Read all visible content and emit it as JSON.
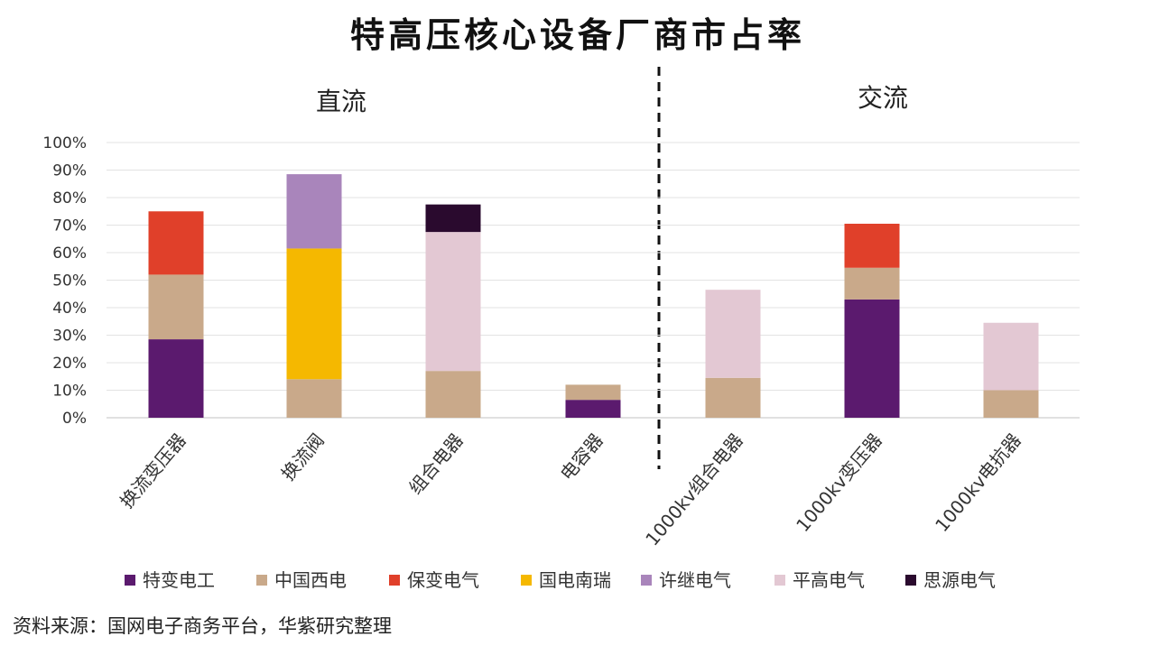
{
  "chart_data": {
    "type": "bar",
    "stacked": true,
    "title": "特高压核心设备厂商市占率",
    "groups": [
      {
        "label": "直流",
        "categories": [
          "换流变压器",
          "换流阀",
          "组合电器",
          "电容器"
        ]
      },
      {
        "label": "交流",
        "categories": [
          "1000kv组合电器",
          "1000kv变压器",
          "1000kv电抗器"
        ]
      }
    ],
    "categories": [
      "换流变压器",
      "换流阀",
      "组合电器",
      "电容器",
      "1000kv组合电器",
      "1000kv变压器",
      "1000kv电抗器"
    ],
    "yticks": [
      "0%",
      "10%",
      "20%",
      "30%",
      "40%",
      "50%",
      "60%",
      "70%",
      "80%",
      "90%",
      "100%"
    ],
    "ylim": [
      0,
      100
    ],
    "grid": true,
    "legend_position": "bottom",
    "series": [
      {
        "name": "特变电工",
        "color": "#5b1a6e",
        "values": [
          28.5,
          0,
          0,
          6.5,
          0,
          43,
          0
        ]
      },
      {
        "name": "中国西电",
        "color": "#c9a98a",
        "values": [
          23.5,
          14,
          17,
          5.5,
          14.5,
          11.5,
          10
        ]
      },
      {
        "name": "保变电气",
        "color": "#e0402a",
        "values": [
          23,
          0,
          0,
          0,
          0,
          16,
          0
        ]
      },
      {
        "name": "国电南瑞",
        "color": "#f5b800",
        "values": [
          0,
          47.5,
          0,
          0,
          0,
          0,
          0
        ]
      },
      {
        "name": "许继电气",
        "color": "#a985bb",
        "values": [
          0,
          27,
          0,
          0,
          0,
          0,
          0
        ]
      },
      {
        "name": "平高电气",
        "color": "#e3c8d3",
        "values": [
          0,
          0,
          50.5,
          0,
          32,
          0,
          24.5
        ]
      },
      {
        "name": "思源电气",
        "color": "#2a0a2e",
        "values": [
          0,
          0,
          10,
          0,
          0,
          0,
          0
        ]
      }
    ]
  },
  "source": "资料来源：国网电子商务平台，华紫研究整理"
}
